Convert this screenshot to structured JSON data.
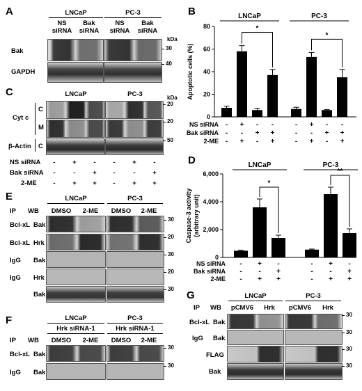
{
  "panels": {
    "A": {
      "label": "A",
      "cell_lines": [
        "LNCaP",
        "PC-3"
      ],
      "columns": [
        [
          "NS",
          "siRNA"
        ],
        [
          "Bak",
          "siRNA"
        ],
        [
          "NS",
          "siRNA"
        ],
        [
          "Bak",
          "siRNA"
        ]
      ],
      "rows": [
        "Bak",
        "GAPDH"
      ],
      "kda_label": "kDa",
      "markers": [
        "30",
        "40"
      ]
    },
    "C": {
      "label": "C",
      "cell_lines": [
        "LNCaP",
        "PC-3"
      ],
      "target": "Cyt c",
      "fractions": [
        "C",
        "M",
        "C"
      ],
      "loading": "β-Actin",
      "kda_label": "kDa",
      "markers": [
        "20",
        "20",
        "50"
      ],
      "treatments": [
        {
          "name": "NS siRNA",
          "signs": [
            "-",
            "+",
            "-",
            "-",
            "+",
            "-"
          ]
        },
        {
          "name": "Bak siRNA",
          "signs": [
            "-",
            "-",
            "+",
            "-",
            "-",
            "+"
          ]
        },
        {
          "name": "2-ME",
          "signs": [
            "-",
            "+",
            "+",
            "-",
            "+",
            "+"
          ]
        }
      ]
    },
    "E": {
      "label": "E",
      "cell_lines": [
        "LNCaP",
        "PC-3"
      ],
      "ip": "IP",
      "wb": "WB",
      "columns": [
        "DMSO",
        "2-ME",
        "DMSO",
        "2-ME"
      ],
      "rows": [
        {
          "ip": "Bcl-xL",
          "wb": "Bak"
        },
        {
          "ip": "Bcl-xL",
          "wb": "Hrk"
        },
        {
          "ip": "IgG",
          "wb": "Bak"
        },
        {
          "ip": "IgG",
          "wb": "Hrk"
        },
        {
          "ip": "",
          "wb": "Bak"
        }
      ],
      "markers": [
        "30",
        "20",
        "30",
        "20",
        "30"
      ]
    },
    "F": {
      "label": "F",
      "cell_lines": [
        "LNCaP",
        "PC-3"
      ],
      "sirna": "Hrk siRNA-1",
      "ip": "IP",
      "wb": "WB",
      "columns": [
        "DMSO",
        "2-ME",
        "DMSO",
        "2-ME"
      ],
      "rows": [
        {
          "ip": "Bcl-xL",
          "wb": "Bak"
        },
        {
          "ip": "IgG",
          "wb": "Bak"
        }
      ],
      "markers": [
        "30",
        "30"
      ]
    },
    "G": {
      "label": "G",
      "cell_lines": [
        "LNCaP",
        "PC-3"
      ],
      "ip": "IP",
      "wb": "WB",
      "columns": [
        "pCMV6",
        "Hrk",
        "pCMV6",
        "Hrk"
      ],
      "rows": [
        {
          "ip": "Bcl-xL",
          "wb": "Bak"
        },
        {
          "ip": "IgG",
          "wb": "Bak"
        },
        {
          "ip": "",
          "wb": "FLAG"
        },
        {
          "ip": "",
          "wb": "Bak"
        }
      ],
      "markers": [
        "30",
        "30",
        "30",
        "30"
      ]
    }
  },
  "chart_data": [
    {
      "panel": "B",
      "type": "bar",
      "ylabel": "Apoptotic cells (%)",
      "ylim": [
        0,
        80
      ],
      "yticks": [
        0,
        20,
        40,
        60,
        80
      ],
      "groups": [
        "LNCaP",
        "PC-3"
      ],
      "values": [
        8,
        58,
        6,
        37,
        7,
        53,
        6,
        35
      ],
      "errors": [
        1.5,
        5,
        1.5,
        5,
        1.5,
        4,
        0.5,
        7
      ],
      "significance": [
        {
          "from": 1,
          "to": 3,
          "label": "*"
        },
        {
          "from": 5,
          "to": 7,
          "label": "*"
        }
      ],
      "treatments": [
        {
          "name": "NS siRNA",
          "signs": [
            "-",
            "+",
            "-",
            "-",
            "-",
            "+",
            "-",
            "-"
          ]
        },
        {
          "name": "Bak siRNA",
          "signs": [
            "-",
            "-",
            "+",
            "+",
            "-",
            "-",
            "+",
            "+"
          ]
        },
        {
          "name": "2-ME",
          "signs": [
            "-",
            "+",
            "-",
            "+",
            "-",
            "+",
            "-",
            "+"
          ]
        }
      ]
    },
    {
      "panel": "D",
      "type": "bar",
      "ylabel": [
        "Caspase-3 activity",
        "(arbitrary unit)"
      ],
      "ylim": [
        0,
        6000
      ],
      "yticks": [
        0,
        2000,
        4000,
        6000
      ],
      "ytick_labels": [
        "0",
        "2,000",
        "4,000",
        "6,000"
      ],
      "groups": [
        "LNCaP",
        "PC-3"
      ],
      "values": [
        480,
        3600,
        1400,
        560,
        4550,
        1750
      ],
      "errors": [
        40,
        600,
        200,
        40,
        500,
        300
      ],
      "significance": [
        {
          "from": 1,
          "to": 2,
          "label": "*"
        },
        {
          "from": 4,
          "to": 5,
          "label": "**"
        }
      ],
      "treatments": [
        {
          "name": "NS siRNA",
          "signs": [
            "-",
            "+",
            "-",
            "-",
            "+",
            "-"
          ]
        },
        {
          "name": "Bak siRNA",
          "signs": [
            "-",
            "-",
            "+",
            "-",
            "-",
            "+"
          ]
        },
        {
          "name": "2-ME",
          "signs": [
            "-",
            "+",
            "+",
            "-",
            "+",
            "+"
          ]
        }
      ]
    }
  ]
}
